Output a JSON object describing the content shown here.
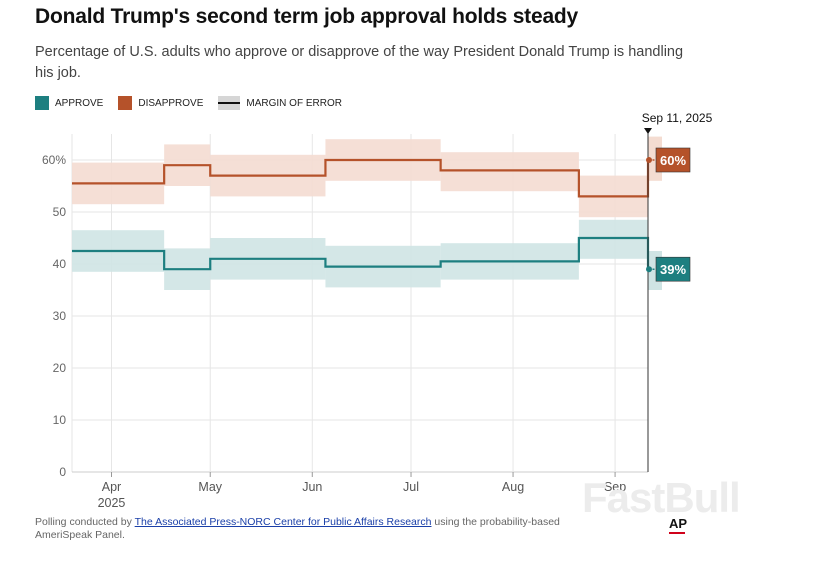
{
  "header": {
    "title": "Donald Trump's second term job approval holds steady",
    "subtitle": "Percentage of U.S. adults who approve or disapprove of the way President Donald Trump is handling his job."
  },
  "legend": {
    "approve": "APPROVE",
    "disapprove": "DISAPPROVE",
    "moe": "MARGIN OF ERROR"
  },
  "footer": {
    "prefix": "Polling conducted by ",
    "link": "The Associated Press-NORC Center for Public Affairs Research",
    "suffix": " using the probability-based AmeriSpeak Panel.",
    "logo": "AP",
    "watermark": "FastBull"
  },
  "chart_data": {
    "type": "line",
    "title": "Donald Trump's second term job approval holds steady",
    "ylim": [
      0,
      65
    ],
    "yticks": [
      0,
      10,
      20,
      30,
      40,
      50,
      60
    ],
    "ytick_labels": [
      "0",
      "10",
      "20",
      "30",
      "40",
      "50",
      "60%"
    ],
    "x_range": [
      "2025-03-20",
      "2025-09-11"
    ],
    "xticks": [
      {
        "date": "2025-04-01",
        "label": "Apr",
        "sublabel": "2025"
      },
      {
        "date": "2025-05-01",
        "label": "May"
      },
      {
        "date": "2025-06-01",
        "label": "Jun"
      },
      {
        "date": "2025-07-01",
        "label": "Jul"
      },
      {
        "date": "2025-08-01",
        "label": "Aug"
      },
      {
        "date": "2025-09-01",
        "label": "Sep"
      }
    ],
    "colors": {
      "approve": "#1d7f80",
      "disapprove": "#b5522a",
      "approve_band": "#cfe4e4",
      "disapprove_band": "#f4dcd1",
      "grid": "#e6e6e6"
    },
    "series": [
      {
        "name": "Disapprove",
        "key": "disapprove",
        "steps": [
          {
            "start": "2025-03-20",
            "end": "2025-04-17",
            "value": 55.5,
            "low": 51.5,
            "high": 59.5
          },
          {
            "start": "2025-04-17",
            "end": "2025-05-01",
            "value": 59,
            "low": 55,
            "high": 63
          },
          {
            "start": "2025-05-01",
            "end": "2025-06-05",
            "value": 57,
            "low": 53,
            "high": 61
          },
          {
            "start": "2025-06-05",
            "end": "2025-07-10",
            "value": 60,
            "low": 56,
            "high": 64
          },
          {
            "start": "2025-07-10",
            "end": "2025-08-21",
            "value": 58,
            "low": 54,
            "high": 61.5
          },
          {
            "start": "2025-08-21",
            "end": "2025-09-11",
            "value": 53,
            "low": 49,
            "high": 57
          }
        ]
      },
      {
        "name": "Approve",
        "key": "approve",
        "steps": [
          {
            "start": "2025-03-20",
            "end": "2025-04-17",
            "value": 42.5,
            "low": 38.5,
            "high": 46.5
          },
          {
            "start": "2025-04-17",
            "end": "2025-05-01",
            "value": 39,
            "low": 35,
            "high": 43
          },
          {
            "start": "2025-05-01",
            "end": "2025-06-05",
            "value": 41,
            "low": 37,
            "high": 45
          },
          {
            "start": "2025-06-05",
            "end": "2025-07-10",
            "value": 39.5,
            "low": 35.5,
            "high": 43.5
          },
          {
            "start": "2025-07-10",
            "end": "2025-08-21",
            "value": 40.5,
            "low": 37,
            "high": 44
          },
          {
            "start": "2025-08-21",
            "end": "2025-09-11",
            "value": 45,
            "low": 41,
            "high": 48.5
          }
        ]
      }
    ],
    "latest": {
      "date": "2025-09-11",
      "label": "Sep 11, 2025",
      "disapprove": {
        "value": 60,
        "label": "60%",
        "low": 56,
        "high": 64.5
      },
      "approve": {
        "value": 39,
        "label": "39%",
        "low": 35,
        "high": 42.5
      }
    }
  }
}
